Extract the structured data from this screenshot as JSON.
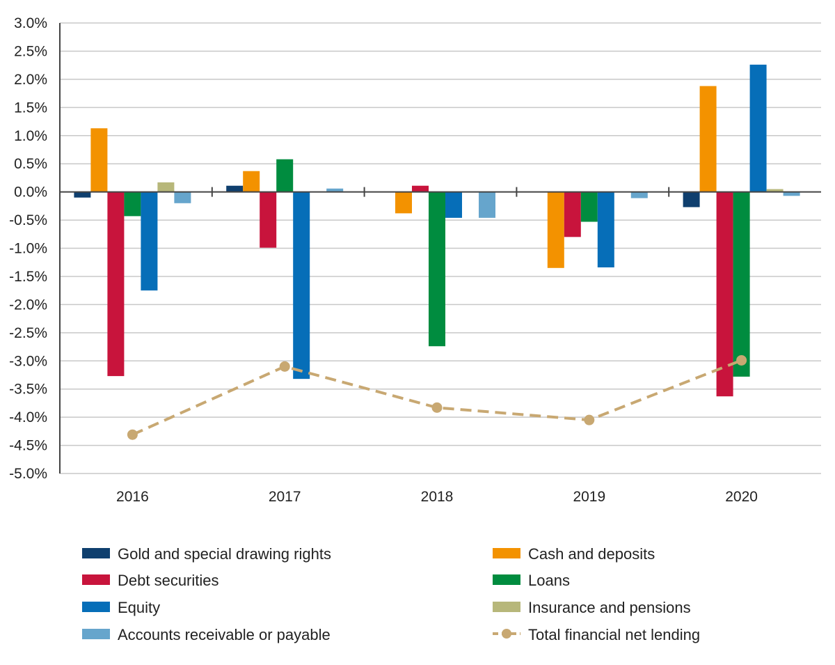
{
  "chart_data": {
    "type": "bar",
    "title": "",
    "xlabel": "",
    "ylabel": "",
    "ylim": [
      -5.0,
      3.0
    ],
    "ytick_step": 0.5,
    "y_format": "percent",
    "grid": true,
    "legend_position": "bottom",
    "categories": [
      "2016",
      "2017",
      "2018",
      "2019",
      "2020"
    ],
    "series": [
      {
        "name": "Gold and special drawing rights",
        "color": "#0f3f6e",
        "values": [
          -0.1,
          0.11,
          0.0,
          0.0,
          -0.27
        ]
      },
      {
        "name": "Cash and deposits",
        "color": "#f39200",
        "values": [
          1.13,
          0.37,
          -0.38,
          -1.35,
          1.88
        ]
      },
      {
        "name": "Debt securities",
        "color": "#c8143c",
        "values": [
          -3.27,
          -0.99,
          0.11,
          -0.8,
          -3.63
        ]
      },
      {
        "name": "Loans",
        "color": "#008c3f",
        "values": [
          -0.43,
          0.58,
          -2.74,
          -0.53,
          -3.28
        ]
      },
      {
        "name": "Equity",
        "color": "#066eb8",
        "values": [
          -1.75,
          -3.32,
          -0.46,
          -1.34,
          2.26
        ]
      },
      {
        "name": "Insurance and pensions",
        "color": "#b7b77a",
        "values": [
          0.17,
          0.0,
          0.0,
          0.0,
          0.05
        ]
      },
      {
        "name": "Accounts receivable or payable",
        "color": "#66a5cc",
        "values": [
          -0.2,
          0.06,
          -0.46,
          -0.11,
          -0.07
        ]
      }
    ],
    "line_series": {
      "name": "Total financial net lending",
      "color": "#c8a872",
      "style": "dashed-with-markers",
      "values": [
        -4.31,
        -3.1,
        -3.83,
        -4.05,
        -2.99
      ]
    },
    "legend_order": [
      [
        "Gold and special drawing rights",
        "Debt securities",
        "Equity",
        "Accounts receivable or payable"
      ],
      [
        "Cash and deposits",
        "Loans",
        "Insurance and pensions",
        "Total financial net lending"
      ]
    ]
  }
}
